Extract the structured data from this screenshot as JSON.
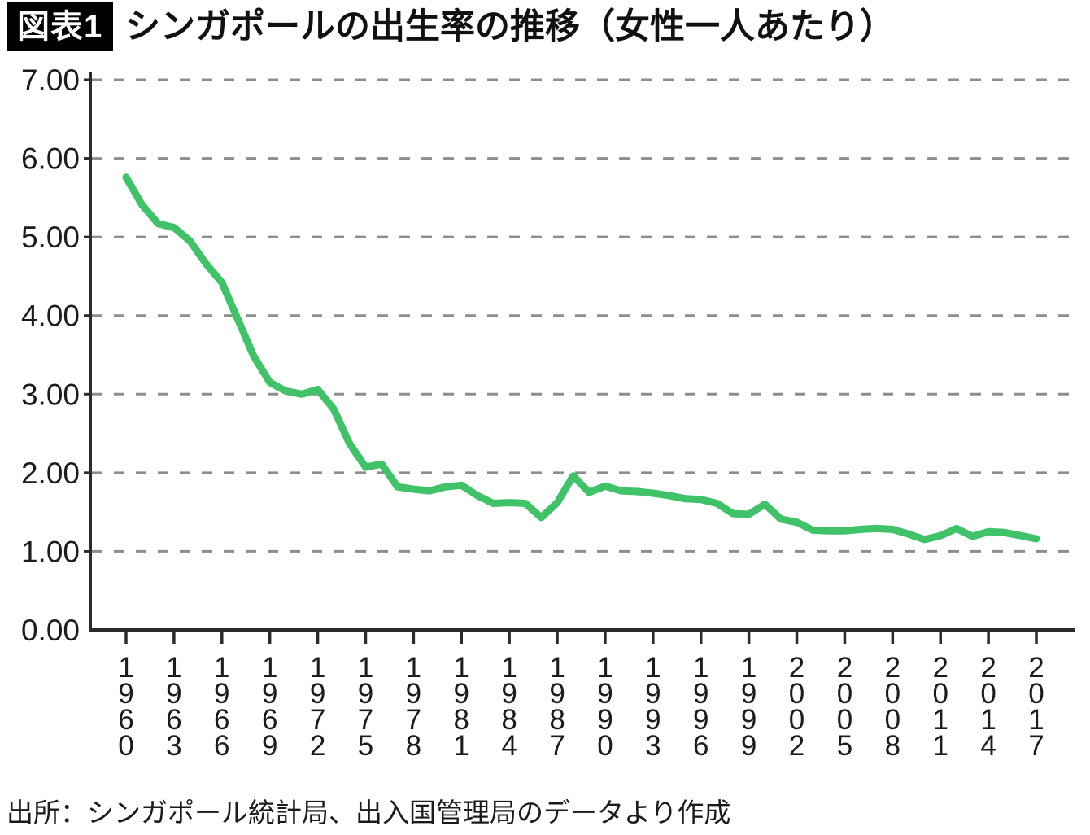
{
  "header": {
    "badge": "図表1",
    "title": "シンガポールの出生率の推移（女性一人あたり）"
  },
  "footer": {
    "source": "出所：シンガポール統計局、出入国管理局のデータより作成"
  },
  "colors": {
    "line": "#3fc268",
    "grid": "#8d8d8d",
    "axis": "#2e2a28",
    "text": "#1c1c1c",
    "badge_bg": "#000000",
    "badge_text": "#ffffff"
  },
  "chart_data": {
    "type": "line",
    "title": "シンガポールの出生率の推移（女性一人あたり）",
    "xlabel": "",
    "ylabel": "",
    "ylim": [
      0,
      7
    ],
    "ytick_labels": [
      "0.00",
      "1.00",
      "2.00",
      "3.00",
      "4.00",
      "5.00",
      "6.00",
      "7.00"
    ],
    "xtick_years": [
      1960,
      1963,
      1966,
      1969,
      1972,
      1975,
      1978,
      1981,
      1984,
      1987,
      1990,
      1993,
      1996,
      1999,
      2002,
      2005,
      2008,
      2011,
      2014,
      2017
    ],
    "grid": "horizontal-dashed",
    "legend": "none",
    "series": [
      {
        "name": "出生率",
        "x": [
          1960,
          1961,
          1962,
          1963,
          1964,
          1965,
          1966,
          1967,
          1968,
          1969,
          1970,
          1971,
          1972,
          1973,
          1974,
          1975,
          1976,
          1977,
          1978,
          1979,
          1980,
          1981,
          1982,
          1983,
          1984,
          1985,
          1986,
          1987,
          1988,
          1989,
          1990,
          1991,
          1992,
          1993,
          1994,
          1995,
          1996,
          1997,
          1998,
          1999,
          2000,
          2001,
          2002,
          2003,
          2004,
          2005,
          2006,
          2007,
          2008,
          2009,
          2010,
          2011,
          2012,
          2013,
          2014,
          2015,
          2016,
          2017
        ],
        "values": [
          5.76,
          5.41,
          5.17,
          5.12,
          4.95,
          4.66,
          4.42,
          3.95,
          3.48,
          3.15,
          3.04,
          3.0,
          3.06,
          2.81,
          2.37,
          2.07,
          2.11,
          1.82,
          1.79,
          1.77,
          1.82,
          1.84,
          1.71,
          1.61,
          1.62,
          1.61,
          1.43,
          1.62,
          1.96,
          1.75,
          1.83,
          1.77,
          1.76,
          1.74,
          1.71,
          1.67,
          1.66,
          1.61,
          1.48,
          1.47,
          1.6,
          1.41,
          1.37,
          1.27,
          1.26,
          1.26,
          1.28,
          1.29,
          1.28,
          1.22,
          1.15,
          1.2,
          1.29,
          1.19,
          1.25,
          1.24,
          1.2,
          1.16
        ]
      }
    ]
  }
}
